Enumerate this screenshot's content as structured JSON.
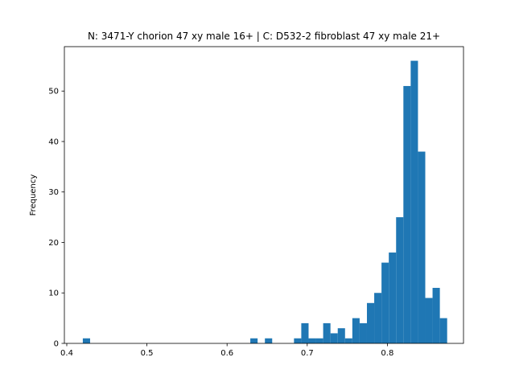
{
  "chart_data": {
    "type": "bar",
    "title": "N: 3471-Y chorion 47 xy male 16+ | C: D532-2 fibroblast 47 xy male 21+",
    "xlabel": "",
    "ylabel": "Frequency",
    "xlim": [
      0.397,
      0.895
    ],
    "ylim": [
      0,
      58.8
    ],
    "xticks": [
      0.4,
      0.5,
      0.6,
      0.7,
      0.8
    ],
    "xtick_labels": [
      "0.4",
      "0.5",
      "0.6",
      "0.7",
      "0.8"
    ],
    "yticks": [
      0,
      10,
      20,
      30,
      40,
      50
    ],
    "ytick_labels": [
      "0",
      "10",
      "20",
      "30",
      "40",
      "50"
    ],
    "grid": false,
    "color": "#1f77b4",
    "bins": [
      {
        "x0": 0.42,
        "x1": 0.4291,
        "value": 1
      },
      {
        "x0": 0.629,
        "x1": 0.6381,
        "value": 1
      },
      {
        "x0": 0.6472,
        "x1": 0.6563,
        "value": 1
      },
      {
        "x0": 0.6835,
        "x1": 0.6926,
        "value": 1
      },
      {
        "x0": 0.6926,
        "x1": 0.7017,
        "value": 4
      },
      {
        "x0": 0.7017,
        "x1": 0.7108,
        "value": 1
      },
      {
        "x0": 0.7108,
        "x1": 0.7199,
        "value": 1
      },
      {
        "x0": 0.7199,
        "x1": 0.729,
        "value": 4
      },
      {
        "x0": 0.729,
        "x1": 0.7381,
        "value": 2
      },
      {
        "x0": 0.7381,
        "x1": 0.7472,
        "value": 3
      },
      {
        "x0": 0.7472,
        "x1": 0.7563,
        "value": 1
      },
      {
        "x0": 0.7563,
        "x1": 0.7654,
        "value": 5
      },
      {
        "x0": 0.7654,
        "x1": 0.7745,
        "value": 4
      },
      {
        "x0": 0.7745,
        "x1": 0.7836,
        "value": 8
      },
      {
        "x0": 0.7836,
        "x1": 0.7927,
        "value": 10
      },
      {
        "x0": 0.7927,
        "x1": 0.8018,
        "value": 16
      },
      {
        "x0": 0.8018,
        "x1": 0.8109,
        "value": 18
      },
      {
        "x0": 0.8109,
        "x1": 0.82,
        "value": 25
      },
      {
        "x0": 0.82,
        "x1": 0.8291,
        "value": 51
      },
      {
        "x0": 0.8291,
        "x1": 0.8382,
        "value": 56
      },
      {
        "x0": 0.8382,
        "x1": 0.8473,
        "value": 38
      },
      {
        "x0": 0.8473,
        "x1": 0.8564,
        "value": 9
      },
      {
        "x0": 0.8564,
        "x1": 0.8655,
        "value": 11
      },
      {
        "x0": 0.8655,
        "x1": 0.8746,
        "value": 5
      }
    ]
  }
}
